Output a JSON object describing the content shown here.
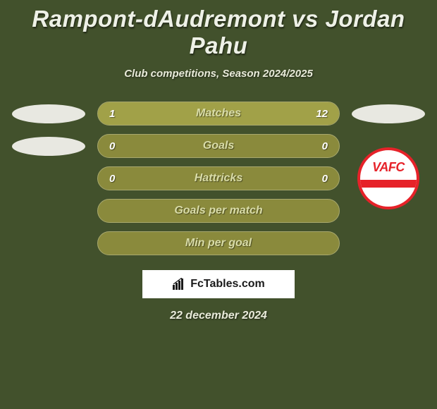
{
  "colors": {
    "background": "#42512c",
    "bar_bg": "#8a8a3c",
    "bar_border": "#a8a86e",
    "bar_fill": "#a1a148",
    "text_primary": "#eef1e7",
    "text_label": "#d9dca8",
    "badge_red": "#e62229",
    "badge_white": "#ffffff",
    "ellipse": "#e8e8e1"
  },
  "title": "Rampont-dAudremont vs Jordan Pahu",
  "subtitle": "Club competitions, Season 2024/2025",
  "rows": [
    {
      "label": "Matches",
      "left": "1",
      "right": "12",
      "left_pct": 8,
      "right_pct": 92
    },
    {
      "label": "Goals",
      "left": "0",
      "right": "0",
      "left_pct": 0,
      "right_pct": 0
    },
    {
      "label": "Hattricks",
      "left": "0",
      "right": "0",
      "left_pct": 0,
      "right_pct": 0
    },
    {
      "label": "Goals per match",
      "left": "",
      "right": "",
      "left_pct": 0,
      "right_pct": 0
    },
    {
      "label": "Min per goal",
      "left": "",
      "right": "",
      "left_pct": 0,
      "right_pct": 0
    }
  ],
  "left_icons": {
    "row0": "ellipse",
    "row1": "ellipse"
  },
  "right_icons": {
    "row0": "ellipse",
    "row2": "badge"
  },
  "badge_text": "VAFC",
  "brand": "FcTables.com",
  "date": "22 december 2024"
}
